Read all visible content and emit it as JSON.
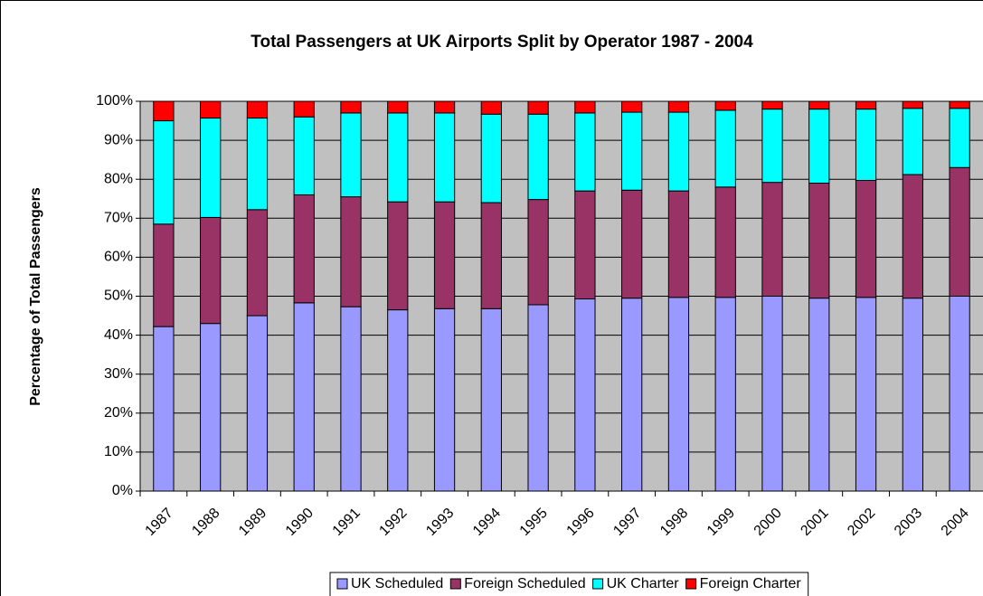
{
  "chart_data": {
    "type": "stacked_bar",
    "title": "Total Passengers at UK Airports Split by Operator 1987 - 2004",
    "y_label": "Percentage of Total Passengers",
    "categories": [
      "1987",
      "1988",
      "1989",
      "1990",
      "1991",
      "1992",
      "1993",
      "1994",
      "1995",
      "1996",
      "1997",
      "1998",
      "1999",
      "2000",
      "2001",
      "2002",
      "2003",
      "2004"
    ],
    "series": [
      {
        "name": "UK Scheduled",
        "color": "#9999ff",
        "values": [
          42.2,
          43,
          45,
          48.3,
          47.3,
          46.5,
          46.8,
          46.8,
          47.8,
          49.3,
          49.5,
          49.7,
          49.7,
          50,
          49.5,
          49.7,
          49.5,
          50
        ]
      },
      {
        "name": "Foreign Scheduled",
        "color": "#993366",
        "values": [
          26.3,
          27.2,
          27.2,
          27.7,
          28.2,
          27.7,
          27.4,
          27.2,
          27,
          27.7,
          27.7,
          27.3,
          28.3,
          29.2,
          29.5,
          30,
          31.7,
          33
        ]
      },
      {
        "name": "UK Charter",
        "color": "#00ffff",
        "values": [
          26.5,
          25.5,
          23.5,
          20,
          21.5,
          22.8,
          22.8,
          22.7,
          21.9,
          20,
          20,
          20.2,
          19.7,
          18.8,
          19,
          18.3,
          17,
          15.2
        ]
      },
      {
        "name": "Foreign Charter",
        "color": "#ff0000",
        "values": [
          5,
          4.3,
          4.3,
          4,
          3,
          3,
          3,
          3.3,
          3.3,
          3,
          2.8,
          2.8,
          2.3,
          2,
          2,
          2,
          1.8,
          1.8
        ]
      }
    ],
    "ylim": [
      0,
      100
    ],
    "yticks": [
      {
        "value": 0,
        "label": "0%"
      },
      {
        "value": 10,
        "label": "10%"
      },
      {
        "value": 20,
        "label": "20%"
      },
      {
        "value": 30,
        "label": "30%"
      },
      {
        "value": 40,
        "label": "40%"
      },
      {
        "value": 50,
        "label": "50%"
      },
      {
        "value": 60,
        "label": "60%"
      },
      {
        "value": 70,
        "label": "70%"
      },
      {
        "value": 80,
        "label": "80%"
      },
      {
        "value": 90,
        "label": "90%"
      },
      {
        "value": 100,
        "label": "100%"
      }
    ],
    "grid": true,
    "legend": "bottom"
  }
}
